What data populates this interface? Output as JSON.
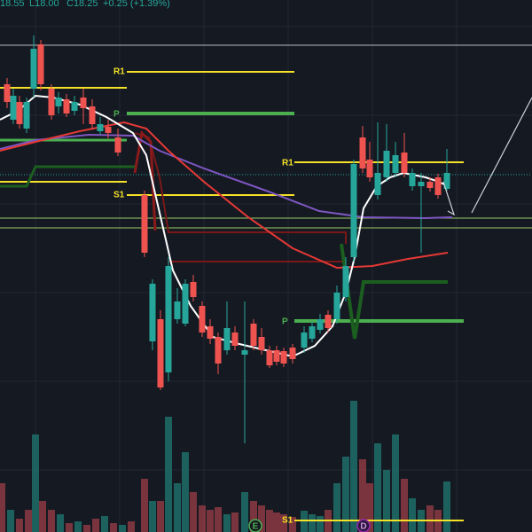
{
  "header": {
    "high": "18.55",
    "low": "L18.00",
    "close": "C18.25",
    "change": "+0.25 (+1.39%)"
  },
  "levels": [
    {
      "label": "R1"
    },
    {
      "label": "P"
    },
    {
      "label": "S1"
    },
    {
      "label": "R1"
    },
    {
      "label": "P"
    },
    {
      "label": "S1"
    }
  ],
  "markers": [
    {
      "label": "E"
    },
    {
      "label": "D"
    }
  ]
}
